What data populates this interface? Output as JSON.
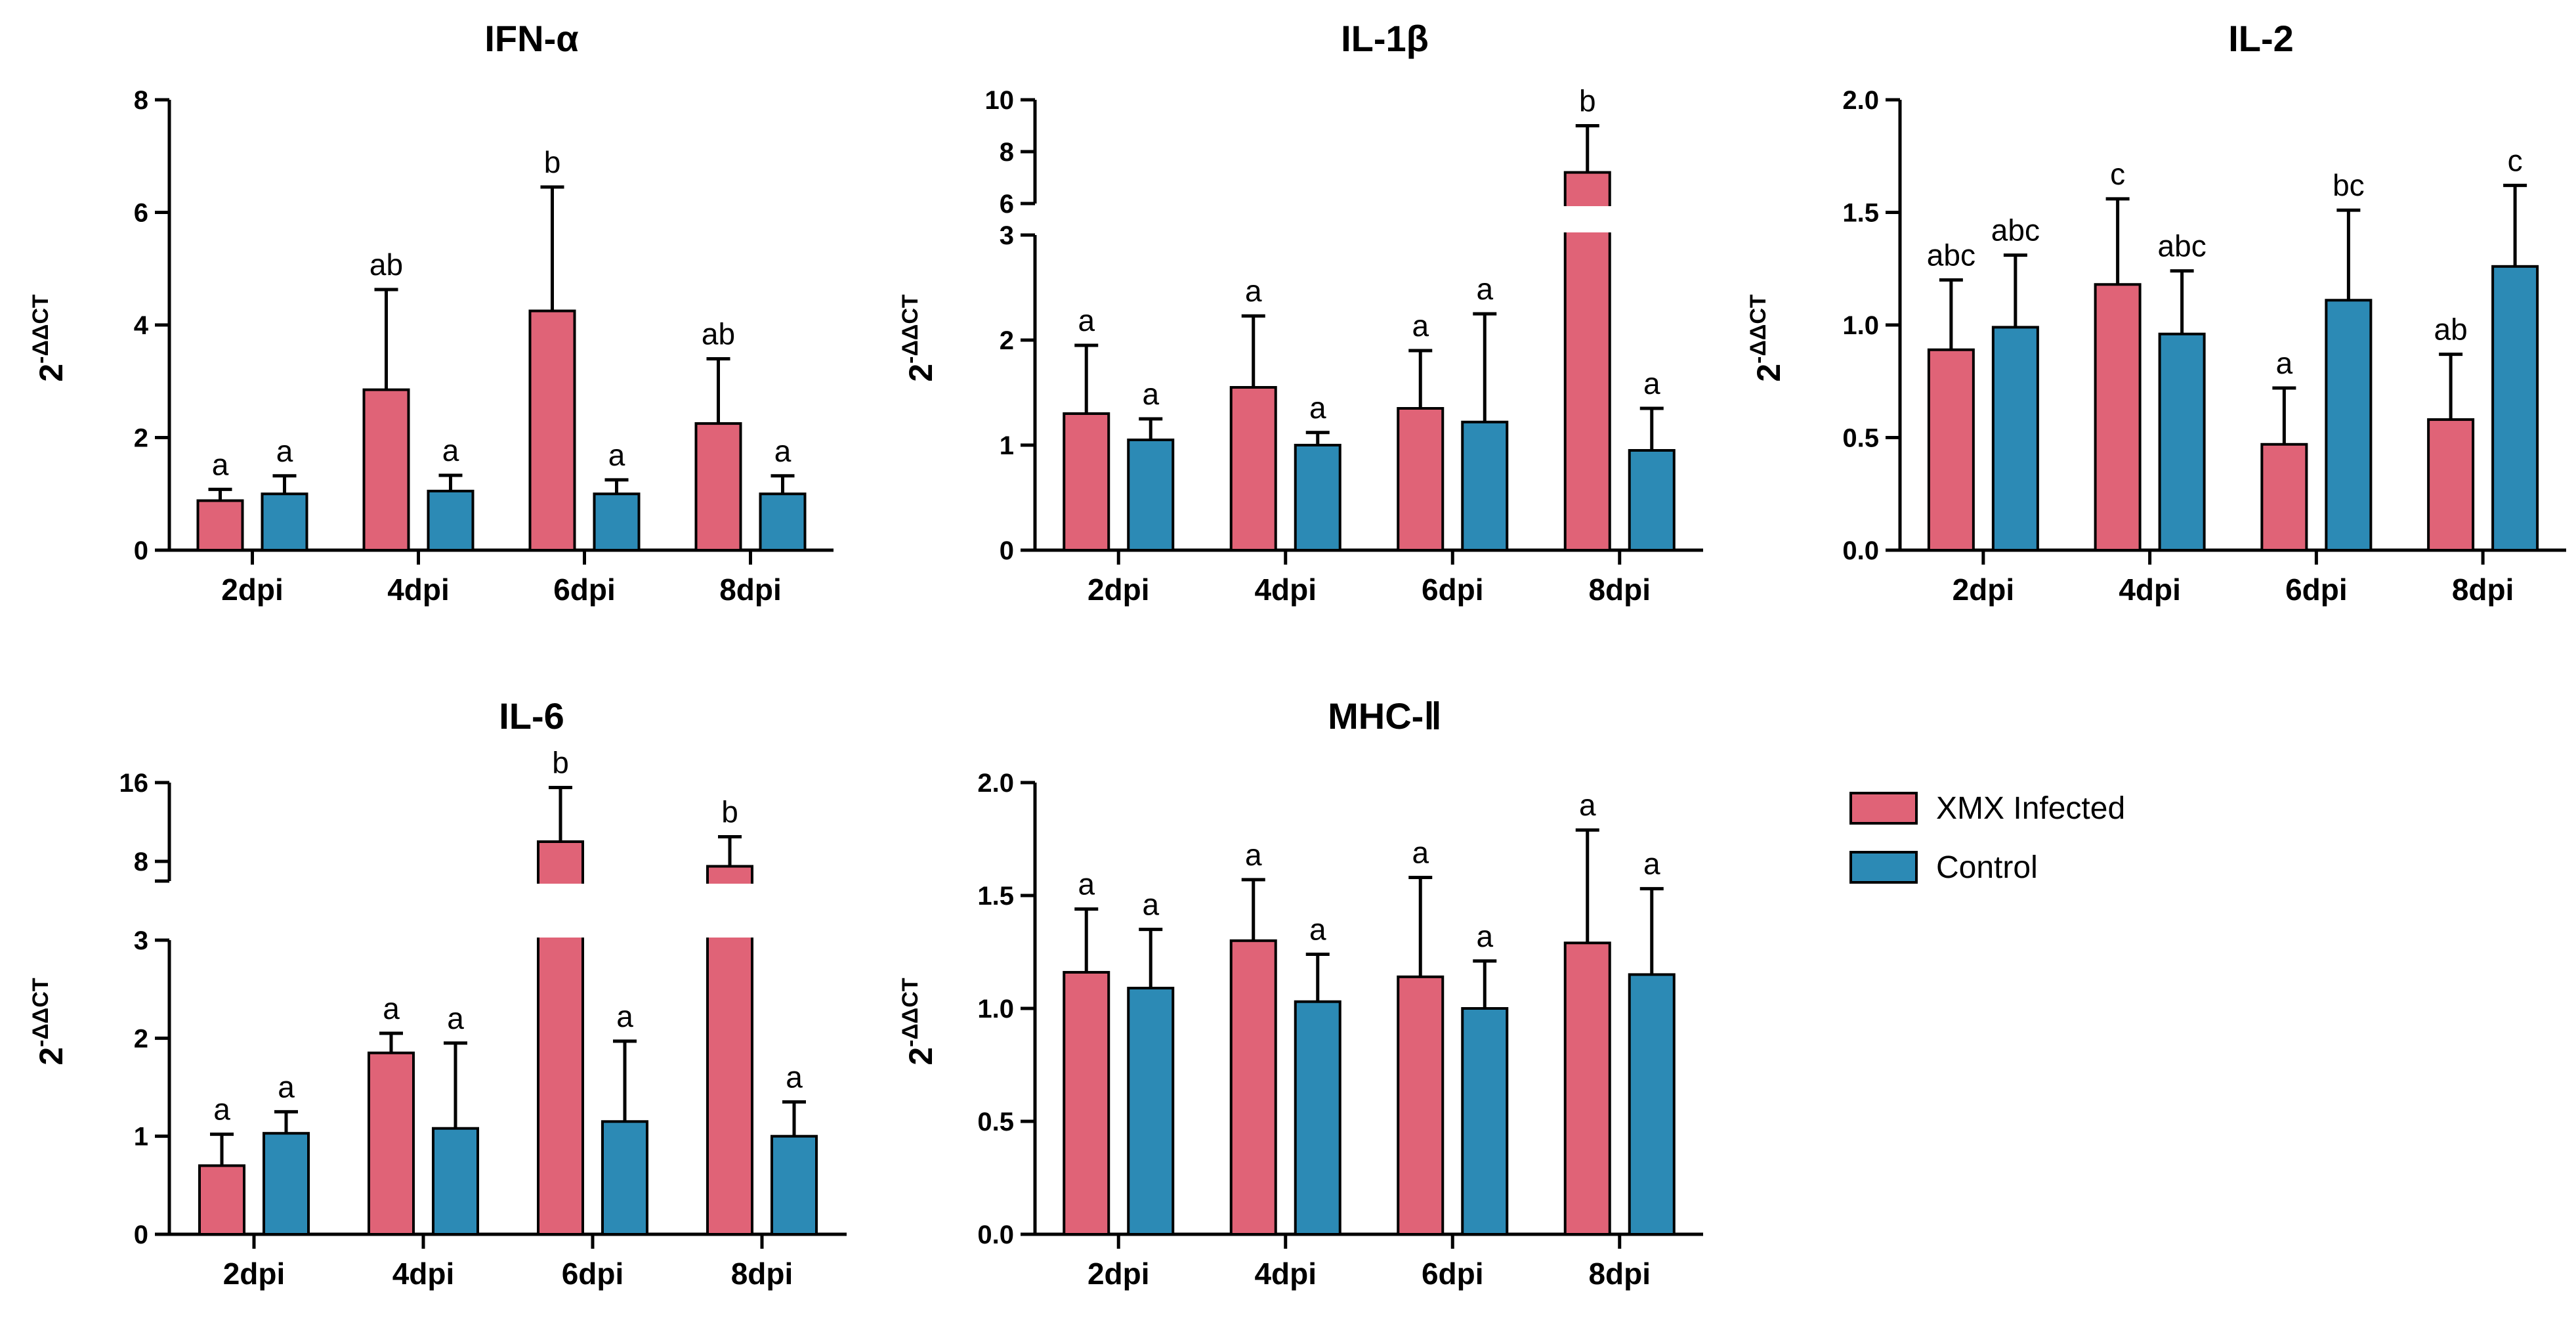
{
  "legend": [
    {
      "name": "XMX Infected",
      "color": "#E06377"
    },
    {
      "name": "Control",
      "color": "#2C8AB5"
    }
  ],
  "chart_data": [
    {
      "type": "bar",
      "title": "IFN-α",
      "ylabel_base": "2",
      "ylabel_exp": "-ΔΔCT",
      "categories": [
        "2dpi",
        "4dpi",
        "6dpi",
        "8dpi"
      ],
      "ylim": [
        0,
        8
      ],
      "yticks": [
        0,
        2,
        4,
        6,
        8
      ],
      "series": [
        {
          "name": "XMX Infected",
          "values": [
            0.88,
            2.85,
            4.25,
            2.25
          ],
          "errors": [
            0.2,
            1.78,
            2.2,
            1.15
          ],
          "labels": [
            "a",
            "ab",
            "b",
            "ab"
          ]
        },
        {
          "name": "Control",
          "values": [
            1.0,
            1.05,
            1.0,
            1.0
          ],
          "errors": [
            0.32,
            0.28,
            0.25,
            0.32
          ],
          "labels": [
            "a",
            "a",
            "a",
            "a"
          ]
        }
      ]
    },
    {
      "type": "bar",
      "title": "IL-1β",
      "ylabel_base": "2",
      "ylabel_exp": "-ΔΔCT",
      "categories": [
        "2dpi",
        "4dpi",
        "6dpi",
        "8dpi"
      ],
      "broken_axis": true,
      "ylim_lower": [
        0,
        3
      ],
      "ylim_upper": [
        6,
        10
      ],
      "yticks_lower": [
        0,
        1,
        2,
        3
      ],
      "yticks_upper": [
        6,
        8,
        10
      ],
      "series": [
        {
          "name": "XMX Infected",
          "values": [
            1.3,
            1.55,
            1.35,
            7.2
          ],
          "errors": [
            0.65,
            0.68,
            0.55,
            1.8
          ],
          "labels": [
            "a",
            "a",
            "a",
            "b"
          ]
        },
        {
          "name": "Control",
          "values": [
            1.05,
            1.0,
            1.22,
            0.95
          ],
          "errors": [
            0.2,
            0.12,
            1.03,
            0.4
          ],
          "labels": [
            "a",
            "a",
            "a",
            "a"
          ]
        }
      ]
    },
    {
      "type": "bar",
      "title": "IL-2",
      "ylabel_base": "2",
      "ylabel_exp": "-ΔΔCT",
      "categories": [
        "2dpi",
        "4dpi",
        "6dpi",
        "8dpi"
      ],
      "ylim": [
        0,
        2
      ],
      "yticks": [
        "0.0",
        "0.5",
        "1.0",
        "1.5",
        "2.0"
      ],
      "series": [
        {
          "name": "XMX Infected",
          "values": [
            0.89,
            1.18,
            0.47,
            0.58
          ],
          "errors": [
            0.31,
            0.38,
            0.25,
            0.29
          ],
          "labels": [
            "abc",
            "c",
            "a",
            "ab"
          ]
        },
        {
          "name": "Control",
          "values": [
            0.99,
            0.96,
            1.11,
            1.26
          ],
          "errors": [
            0.32,
            0.28,
            0.4,
            0.36
          ],
          "labels": [
            "abc",
            "abc",
            "bc",
            "c"
          ]
        }
      ]
    },
    {
      "type": "bar",
      "title": "IL-6",
      "ylabel_base": "2",
      "ylabel_exp": "-ΔΔCT",
      "categories": [
        "2dpi",
        "4dpi",
        "6dpi",
        "8dpi"
      ],
      "broken_axis": true,
      "ylim_lower": [
        0,
        3
      ],
      "ylim_upper": [
        6,
        16
      ],
      "yticks_lower": [
        0,
        1,
        2,
        3
      ],
      "yticks_upper": [
        8,
        16
      ],
      "series": [
        {
          "name": "XMX Infected",
          "values": [
            0.7,
            1.85,
            10.0,
            7.5
          ],
          "errors": [
            0.32,
            0.2,
            5.5,
            3.0
          ],
          "labels": [
            "a",
            "a",
            "b",
            "b"
          ]
        },
        {
          "name": "Control",
          "values": [
            1.03,
            1.08,
            1.15,
            1.0
          ],
          "errors": [
            0.22,
            0.87,
            0.82,
            0.35
          ],
          "labels": [
            "a",
            "a",
            "a",
            "a"
          ]
        }
      ]
    },
    {
      "type": "bar",
      "title": "MHC-Ⅱ",
      "ylabel_base": "2",
      "ylabel_exp": "-ΔΔCT",
      "categories": [
        "2dpi",
        "4dpi",
        "6dpi",
        "8dpi"
      ],
      "ylim": [
        0,
        2
      ],
      "yticks": [
        "0.0",
        "0.5",
        "1.0",
        "1.5",
        "2.0"
      ],
      "series": [
        {
          "name": "XMX Infected",
          "values": [
            1.16,
            1.3,
            1.14,
            1.29
          ],
          "errors": [
            0.28,
            0.27,
            0.44,
            0.5
          ],
          "labels": [
            "a",
            "a",
            "a",
            "a"
          ]
        },
        {
          "name": "Control",
          "values": [
            1.09,
            1.03,
            1.0,
            1.15
          ],
          "errors": [
            0.26,
            0.21,
            0.21,
            0.38
          ],
          "labels": [
            "a",
            "a",
            "a",
            "a"
          ]
        }
      ]
    }
  ]
}
